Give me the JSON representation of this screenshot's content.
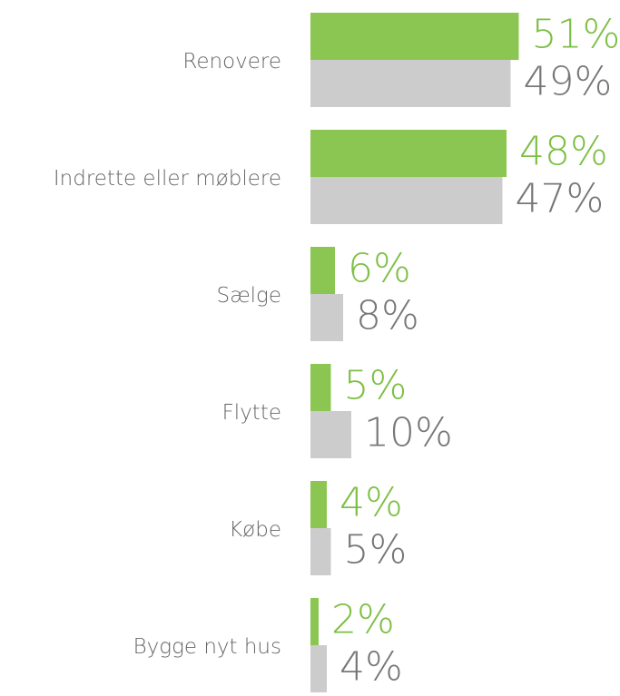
{
  "chart_data": {
    "type": "bar",
    "orientation": "horizontal",
    "categories": [
      "Renovere",
      "Indrette eller møblere",
      "Sælge",
      "Flytte",
      "Købe",
      "Bygge nyt hus"
    ],
    "series": [
      {
        "color": "#8bc653",
        "label_color": "#7dbf45",
        "values": [
          51,
          48,
          6,
          5,
          4,
          2
        ],
        "value_labels": [
          "51%",
          "48%",
          "6%",
          "5%",
          "4%",
          "2%"
        ]
      },
      {
        "color": "#cccccc",
        "label_color": "#777777",
        "values": [
          49,
          47,
          8,
          10,
          5,
          4
        ],
        "value_labels": [
          "49%",
          "47%",
          "8%",
          "10%",
          "5%",
          "4%"
        ]
      }
    ]
  }
}
